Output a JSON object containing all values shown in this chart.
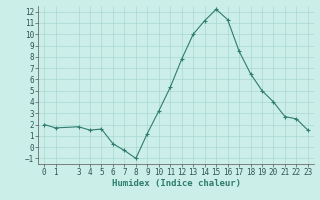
{
  "x": [
    0,
    1,
    3,
    4,
    5,
    6,
    7,
    8,
    9,
    10,
    11,
    12,
    13,
    14,
    15,
    16,
    17,
    18,
    19,
    20,
    21,
    22,
    23
  ],
  "y": [
    2.0,
    1.7,
    1.8,
    1.5,
    1.6,
    0.3,
    -0.3,
    -1.0,
    1.2,
    3.2,
    5.3,
    7.8,
    10.0,
    11.2,
    12.2,
    11.3,
    8.5,
    6.5,
    5.0,
    4.0,
    2.7,
    2.5,
    1.5
  ],
  "line_color": "#2e7d6e",
  "marker": "+",
  "bg_color": "#cceee8",
  "grid_color": "#aad8d2",
  "xlabel": "Humidex (Indice chaleur)",
  "xlim": [
    -0.5,
    23.5
  ],
  "ylim": [
    -1.5,
    12.5
  ],
  "yticks": [
    -1,
    0,
    1,
    2,
    3,
    4,
    5,
    6,
    7,
    8,
    9,
    10,
    11,
    12
  ],
  "xticks": [
    0,
    1,
    3,
    4,
    5,
    6,
    7,
    8,
    9,
    10,
    11,
    12,
    13,
    14,
    15,
    16,
    17,
    18,
    19,
    20,
    21,
    22,
    23
  ],
  "tick_labelsize": 5.5,
  "xlabel_fontsize": 6.5,
  "linewidth": 0.8,
  "markersize": 3,
  "markeredgewidth": 0.8
}
